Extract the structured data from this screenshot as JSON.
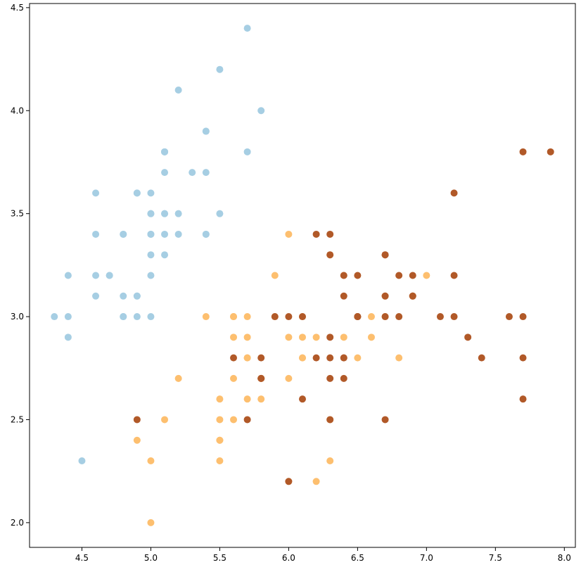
{
  "chart_data": {
    "type": "scatter",
    "title": "",
    "xlabel": "",
    "ylabel": "",
    "xlim": [
      4.12,
      8.08
    ],
    "ylim": [
      1.88,
      4.52
    ],
    "grid": false,
    "x_ticks": [
      "4.5",
      "5.0",
      "5.5",
      "6.0",
      "6.5",
      "7.0",
      "7.5",
      "8.0"
    ],
    "y_ticks": [
      "2.0",
      "2.5",
      "3.0",
      "3.5",
      "4.0",
      "4.5"
    ],
    "series": [
      {
        "color": "#a6cee3",
        "points": [
          [
            5.1,
            3.5
          ],
          [
            4.9,
            3.0
          ],
          [
            4.7,
            3.2
          ],
          [
            4.6,
            3.1
          ],
          [
            5.0,
            3.6
          ],
          [
            5.4,
            3.9
          ],
          [
            4.6,
            3.4
          ],
          [
            5.0,
            3.4
          ],
          [
            4.4,
            2.9
          ],
          [
            4.9,
            3.1
          ],
          [
            5.4,
            3.7
          ],
          [
            4.8,
            3.4
          ],
          [
            4.8,
            3.0
          ],
          [
            4.3,
            3.0
          ],
          [
            5.8,
            4.0
          ],
          [
            5.7,
            4.4
          ],
          [
            5.4,
            3.9
          ],
          [
            5.1,
            3.5
          ],
          [
            5.7,
            3.8
          ],
          [
            5.1,
            3.8
          ],
          [
            5.4,
            3.4
          ],
          [
            5.1,
            3.7
          ],
          [
            4.6,
            3.6
          ],
          [
            5.1,
            3.3
          ],
          [
            4.8,
            3.4
          ],
          [
            5.0,
            3.0
          ],
          [
            5.0,
            3.4
          ],
          [
            5.2,
            3.5
          ],
          [
            5.2,
            3.4
          ],
          [
            4.7,
            3.2
          ],
          [
            4.8,
            3.1
          ],
          [
            5.4,
            3.4
          ],
          [
            5.2,
            4.1
          ],
          [
            5.5,
            4.2
          ],
          [
            4.9,
            3.1
          ],
          [
            5.0,
            3.2
          ],
          [
            5.5,
            3.5
          ],
          [
            4.9,
            3.6
          ],
          [
            4.4,
            3.0
          ],
          [
            5.1,
            3.4
          ],
          [
            5.0,
            3.5
          ],
          [
            4.5,
            2.3
          ],
          [
            4.4,
            3.2
          ],
          [
            5.0,
            3.5
          ],
          [
            5.1,
            3.8
          ],
          [
            4.8,
            3.0
          ],
          [
            5.1,
            3.8
          ],
          [
            4.6,
            3.2
          ],
          [
            5.3,
            3.7
          ],
          [
            5.0,
            3.3
          ],
          [
            4.9,
            3.6
          ]
        ]
      },
      {
        "color": "#fdbf6f",
        "points": [
          [
            7.0,
            3.2
          ],
          [
            6.4,
            3.2
          ],
          [
            6.9,
            3.1
          ],
          [
            5.5,
            2.3
          ],
          [
            6.5,
            2.8
          ],
          [
            5.7,
            2.8
          ],
          [
            6.3,
            3.3
          ],
          [
            4.9,
            2.4
          ],
          [
            6.6,
            2.9
          ],
          [
            5.2,
            2.7
          ],
          [
            5.0,
            2.0
          ],
          [
            5.9,
            3.0
          ],
          [
            6.0,
            2.2
          ],
          [
            6.1,
            2.9
          ],
          [
            5.6,
            2.9
          ],
          [
            6.7,
            3.1
          ],
          [
            5.6,
            3.0
          ],
          [
            5.8,
            2.7
          ],
          [
            6.2,
            2.2
          ],
          [
            5.6,
            2.5
          ],
          [
            5.9,
            3.2
          ],
          [
            6.1,
            2.8
          ],
          [
            6.3,
            2.5
          ],
          [
            6.1,
            2.8
          ],
          [
            6.4,
            2.9
          ],
          [
            6.6,
            3.0
          ],
          [
            6.8,
            2.8
          ],
          [
            6.7,
            3.0
          ],
          [
            6.0,
            2.9
          ],
          [
            5.7,
            2.6
          ],
          [
            5.5,
            2.4
          ],
          [
            5.5,
            2.4
          ],
          [
            5.8,
            2.7
          ],
          [
            6.0,
            2.7
          ],
          [
            5.4,
            3.0
          ],
          [
            6.0,
            3.4
          ],
          [
            6.7,
            3.1
          ],
          [
            6.3,
            2.3
          ],
          [
            5.6,
            3.0
          ],
          [
            5.5,
            2.5
          ],
          [
            5.5,
            2.6
          ],
          [
            6.1,
            3.0
          ],
          [
            5.8,
            2.6
          ],
          [
            5.0,
            2.3
          ],
          [
            5.6,
            2.7
          ],
          [
            5.7,
            3.0
          ],
          [
            5.7,
            2.9
          ],
          [
            6.2,
            2.9
          ],
          [
            5.1,
            2.5
          ],
          [
            5.7,
            2.8
          ]
        ]
      },
      {
        "color": "#b15928",
        "points": [
          [
            6.3,
            3.3
          ],
          [
            5.8,
            2.7
          ],
          [
            7.1,
            3.0
          ],
          [
            6.3,
            2.9
          ],
          [
            6.5,
            3.0
          ],
          [
            7.6,
            3.0
          ],
          [
            4.9,
            2.5
          ],
          [
            7.3,
            2.9
          ],
          [
            6.7,
            2.5
          ],
          [
            7.2,
            3.6
          ],
          [
            6.5,
            3.2
          ],
          [
            6.4,
            2.7
          ],
          [
            6.8,
            3.0
          ],
          [
            5.7,
            2.5
          ],
          [
            5.8,
            2.8
          ],
          [
            6.4,
            3.2
          ],
          [
            6.5,
            3.0
          ],
          [
            7.7,
            3.8
          ],
          [
            7.7,
            2.6
          ],
          [
            6.0,
            2.2
          ],
          [
            6.9,
            3.2
          ],
          [
            5.6,
            2.8
          ],
          [
            7.7,
            2.8
          ],
          [
            6.3,
            2.7
          ],
          [
            6.7,
            3.3
          ],
          [
            7.2,
            3.2
          ],
          [
            6.2,
            2.8
          ],
          [
            6.1,
            3.0
          ],
          [
            6.4,
            2.8
          ],
          [
            7.2,
            3.0
          ],
          [
            7.4,
            2.8
          ],
          [
            7.9,
            3.8
          ],
          [
            6.4,
            2.8
          ],
          [
            6.3,
            2.8
          ],
          [
            6.1,
            2.6
          ],
          [
            7.7,
            3.0
          ],
          [
            6.3,
            3.4
          ],
          [
            6.4,
            3.1
          ],
          [
            6.0,
            3.0
          ],
          [
            6.9,
            3.1
          ],
          [
            6.7,
            3.1
          ],
          [
            6.9,
            3.1
          ],
          [
            5.8,
            2.7
          ],
          [
            6.8,
            3.2
          ],
          [
            6.7,
            3.3
          ],
          [
            6.7,
            3.0
          ],
          [
            6.3,
            2.5
          ],
          [
            6.5,
            3.0
          ],
          [
            6.2,
            3.4
          ],
          [
            5.9,
            3.0
          ]
        ]
      }
    ]
  }
}
